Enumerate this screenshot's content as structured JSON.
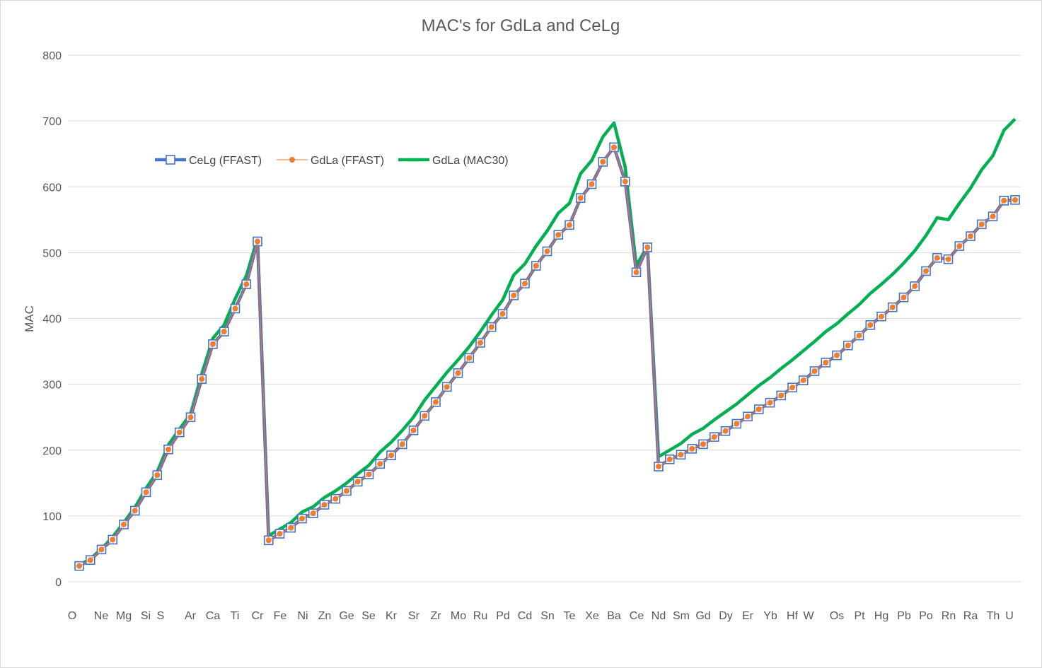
{
  "chart_data": {
    "type": "line",
    "title": "MAC's for GdLa and CeLg",
    "xlabel": "",
    "ylabel": "MAC",
    "ylim": [
      0,
      800
    ],
    "yticks": [
      0,
      100,
      200,
      300,
      400,
      500,
      600,
      700,
      800
    ],
    "grid": true,
    "legend_position": "upper-left",
    "x_tick_labels": [
      "O",
      "Ne",
      "Mg",
      "Si",
      "S",
      "Ar",
      "Ca",
      "Ti",
      "Cr",
      "Fe",
      "Ni",
      "Zn",
      "Ge",
      "Se",
      "Kr",
      "Sr",
      "Zr",
      "Mo",
      "Ru",
      "Pd",
      "Cd",
      "Sn",
      "Te",
      "Xe",
      "Ba",
      "Ce",
      "Nd",
      "Sm",
      "Gd",
      "Dy",
      "Er",
      "Yb",
      "Hf",
      "W",
      "Os",
      "Pt",
      "Hg",
      "Pb",
      "Po",
      "Rn",
      "Ra",
      "Th",
      "U"
    ],
    "series": [
      {
        "name": "CeLg (FFAST)",
        "color": "#4472c4",
        "marker": "square",
        "values": [
          24,
          33,
          49,
          64,
          87,
          108,
          136,
          162,
          201,
          227,
          250,
          308,
          361,
          380,
          415,
          452,
          517,
          63,
          73,
          82,
          96,
          104,
          117,
          126,
          138,
          152,
          163,
          179,
          192,
          209,
          230,
          252,
          273,
          296,
          317,
          340,
          363,
          387,
          407,
          435,
          453,
          480,
          502,
          527,
          542,
          583,
          604,
          638,
          660,
          608,
          470,
          508,
          175,
          186,
          193,
          202,
          209,
          220,
          229,
          240,
          251,
          262,
          272,
          283,
          295,
          306,
          320,
          333,
          344,
          359,
          374,
          390,
          403,
          417,
          432,
          449,
          472,
          492,
          490,
          510,
          525,
          543,
          555,
          579,
          580
        ]
      },
      {
        "name": "GdLa (FFAST)",
        "color": "#ed7d31",
        "marker": "circle",
        "values": [
          24,
          33,
          49,
          64,
          87,
          108,
          136,
          162,
          201,
          227,
          250,
          308,
          361,
          380,
          415,
          452,
          517,
          63,
          73,
          82,
          96,
          104,
          117,
          126,
          138,
          152,
          163,
          179,
          192,
          209,
          230,
          252,
          273,
          296,
          317,
          340,
          363,
          387,
          407,
          435,
          453,
          480,
          502,
          527,
          542,
          583,
          604,
          638,
          660,
          608,
          470,
          508,
          175,
          186,
          193,
          202,
          209,
          220,
          229,
          240,
          251,
          262,
          272,
          283,
          295,
          306,
          320,
          333,
          344,
          359,
          374,
          390,
          403,
          417,
          432,
          449,
          472,
          492,
          490,
          510,
          525,
          543,
          555,
          579,
          580
        ]
      },
      {
        "name": "GdLa (MAC30)",
        "color": "#00b050",
        "marker": "none",
        "values": [
          25,
          35,
          50,
          68,
          90,
          113,
          142,
          167,
          208,
          232,
          255,
          316,
          370,
          390,
          430,
          465,
          522,
          70,
          80,
          90,
          106,
          114,
          128,
          138,
          150,
          164,
          177,
          197,
          212,
          230,
          250,
          276,
          297,
          318,
          337,
          357,
          380,
          405,
          428,
          466,
          483,
          510,
          533,
          560,
          575,
          620,
          640,
          676,
          697,
          630,
          480,
          510,
          190,
          200,
          210,
          224,
          233,
          246,
          258,
          270,
          284,
          298,
          310,
          324,
          337,
          351,
          365,
          380,
          392,
          407,
          421,
          438,
          452,
          467,
          484,
          503,
          526,
          553,
          550,
          575,
          598,
          626,
          647,
          686,
          703
        ]
      }
    ]
  }
}
